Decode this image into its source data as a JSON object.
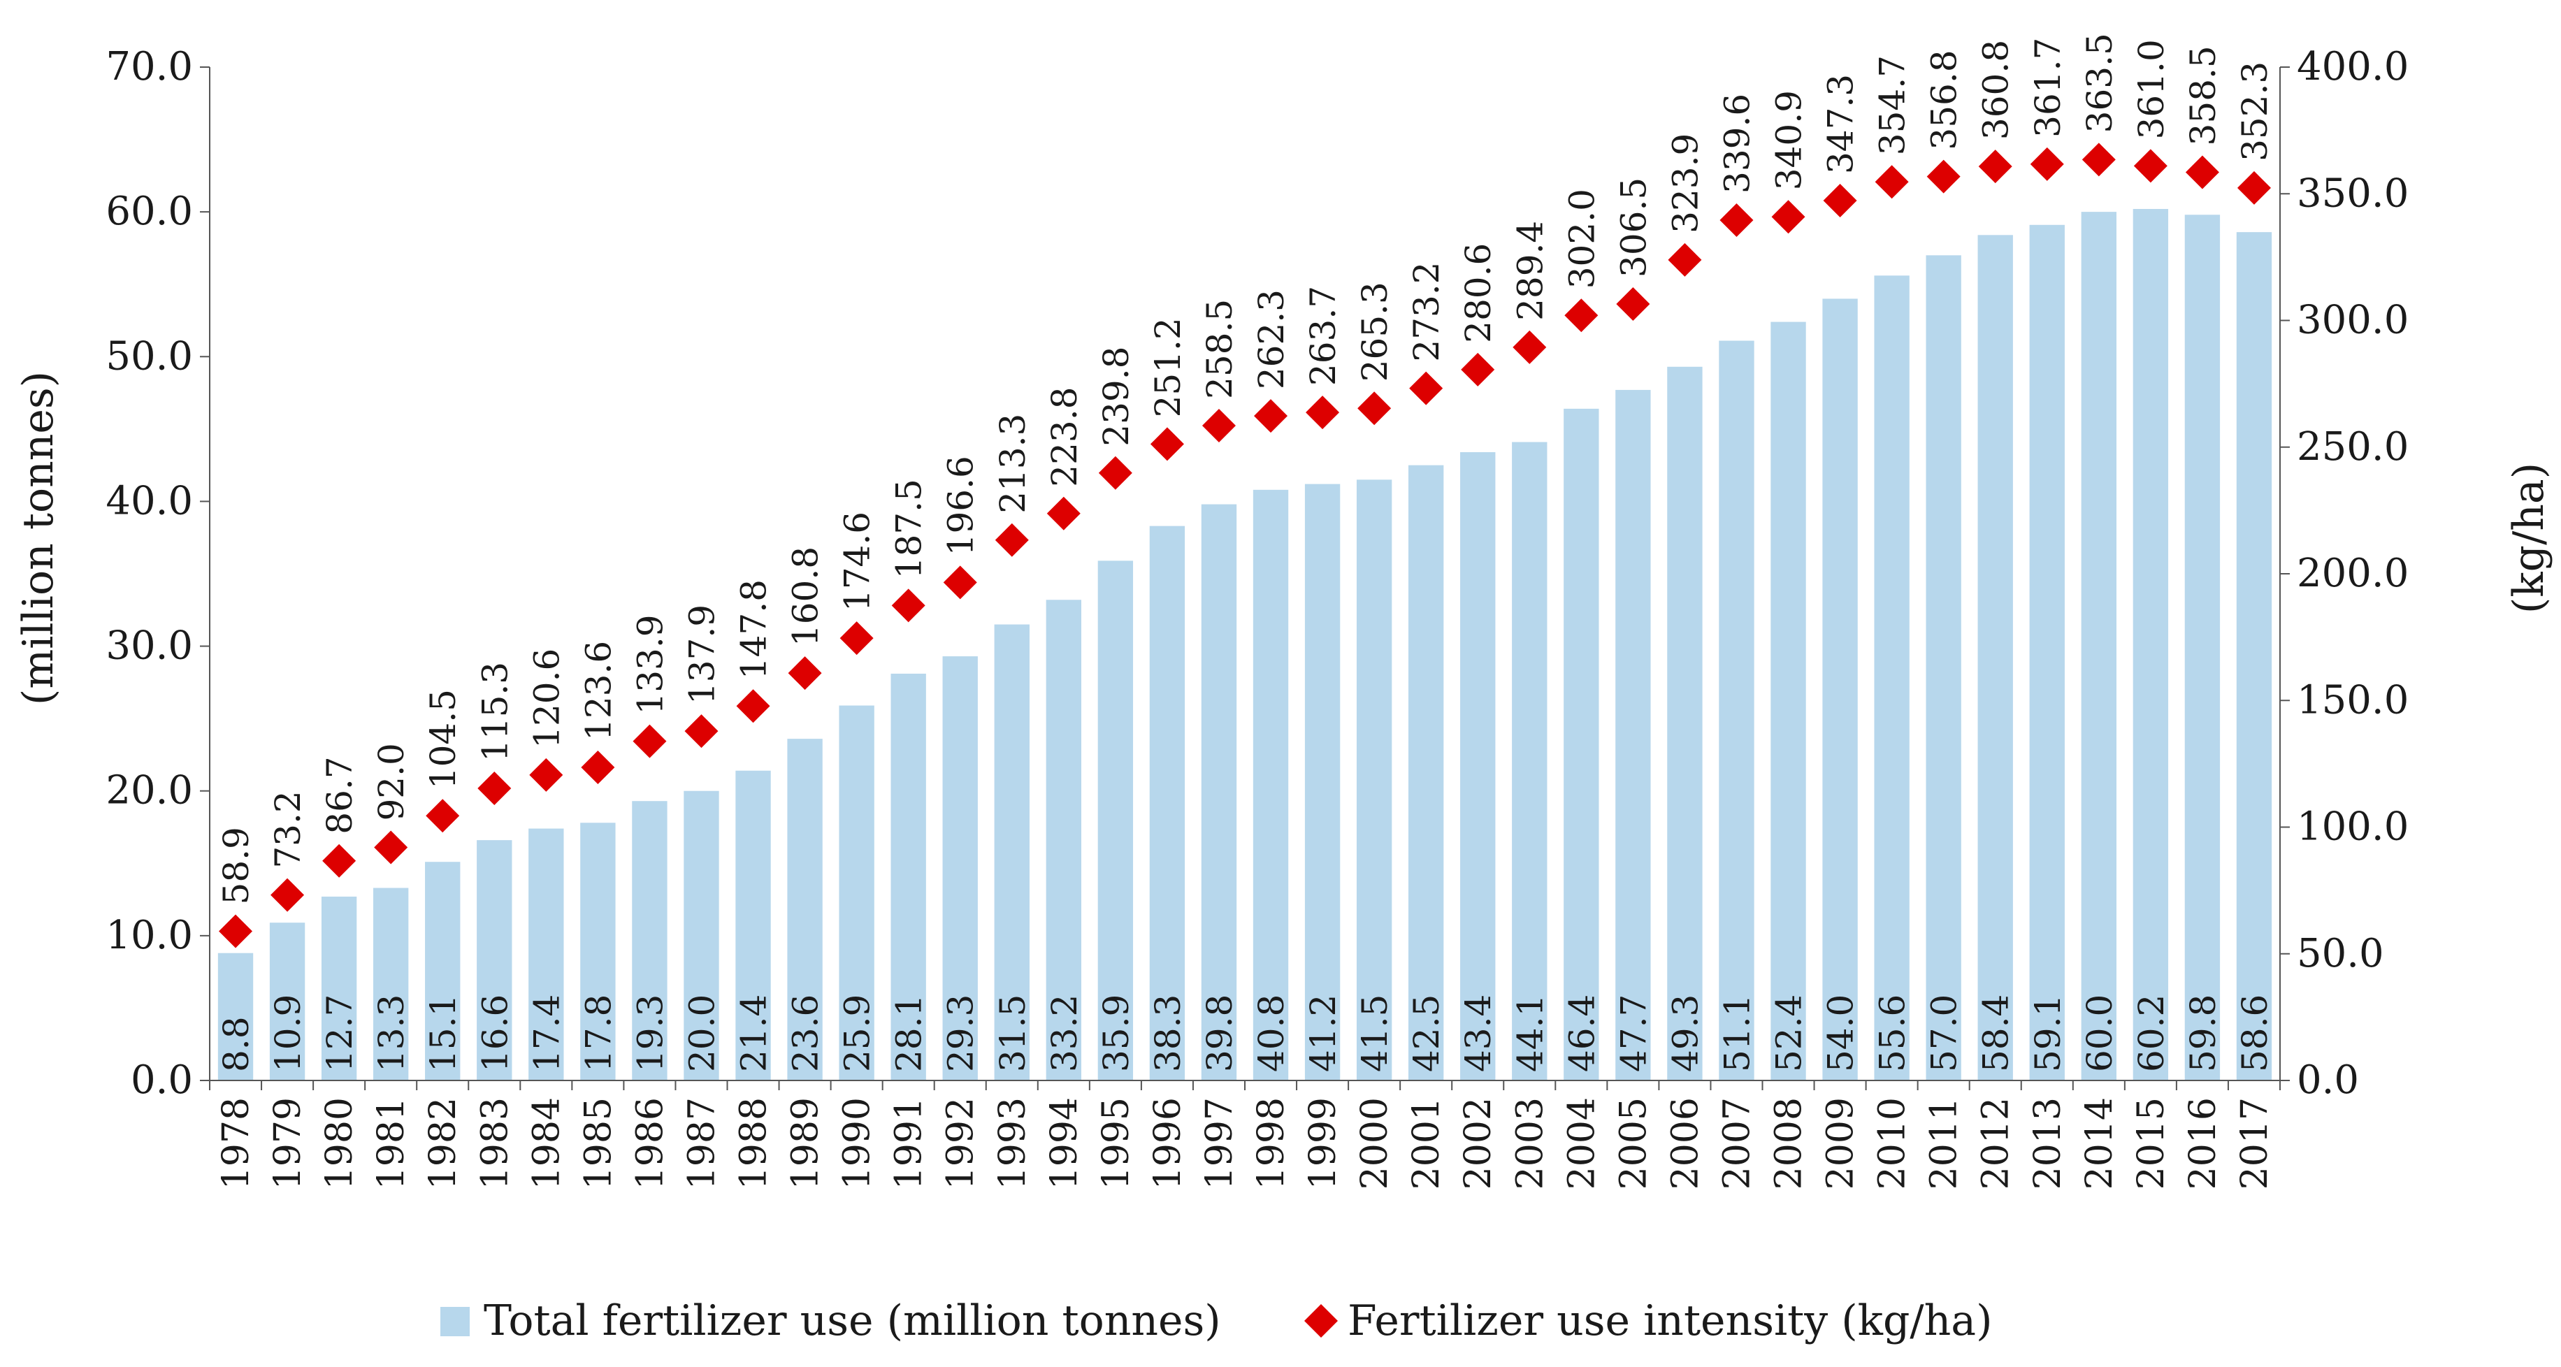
{
  "chart_data": {
    "type": "bar+scatter",
    "title": "",
    "categories": [
      "1978",
      "1979",
      "1980",
      "1981",
      "1982",
      "1983",
      "1984",
      "1985",
      "1986",
      "1987",
      "1988",
      "1989",
      "1990",
      "1991",
      "1992",
      "1993",
      "1994",
      "1995",
      "1996",
      "1997",
      "1998",
      "1999",
      "2000",
      "2001",
      "2002",
      "2003",
      "2004",
      "2005",
      "2006",
      "2007",
      "2008",
      "2009",
      "2010",
      "2011",
      "2012",
      "2013",
      "2014",
      "2015",
      "2016",
      "2017"
    ],
    "series": [
      {
        "name": "Total fertilizer use (million tonnes)",
        "type": "bar",
        "axis": "left",
        "color": "#b7d7ec",
        "values": [
          8.8,
          10.9,
          12.7,
          13.3,
          15.1,
          16.6,
          17.4,
          17.8,
          19.3,
          20.0,
          21.4,
          23.6,
          25.9,
          28.1,
          29.3,
          31.5,
          33.2,
          35.9,
          38.3,
          39.8,
          40.8,
          41.2,
          41.5,
          42.5,
          43.4,
          44.1,
          46.4,
          47.7,
          49.3,
          51.1,
          52.4,
          54.0,
          55.6,
          57.0,
          58.4,
          59.1,
          60.0,
          60.2,
          59.8,
          58.6
        ]
      },
      {
        "name": "Fertilizer use intensity (kg/ha)",
        "type": "scatter",
        "marker": "diamond",
        "axis": "right",
        "color": "#dd0000",
        "values": [
          58.9,
          73.2,
          86.7,
          92.0,
          104.5,
          115.3,
          120.6,
          123.6,
          133.9,
          137.9,
          147.8,
          160.8,
          174.6,
          187.5,
          196.6,
          213.3,
          223.8,
          239.8,
          251.2,
          258.5,
          262.3,
          263.7,
          265.3,
          273.2,
          280.6,
          289.4,
          302.0,
          306.5,
          323.9,
          339.6,
          340.9,
          347.3,
          354.7,
          356.8,
          360.8,
          361.7,
          363.5,
          361.0,
          358.5,
          352.3
        ]
      }
    ],
    "left_axis": {
      "label": "(million tonnes)",
      "ylim": [
        0,
        70
      ],
      "ticks": [
        "0.0",
        "10.0",
        "20.0",
        "30.0",
        "40.0",
        "50.0",
        "60.0",
        "70.0"
      ]
    },
    "right_axis": {
      "label": "(kg/ha)",
      "ylim": [
        0,
        400
      ],
      "ticks": [
        "0.0",
        "50.0",
        "100.0",
        "150.0",
        "200.0",
        "250.0",
        "300.0",
        "350.0",
        "400.0"
      ]
    },
    "legend_position": "bottom",
    "grid": false
  }
}
